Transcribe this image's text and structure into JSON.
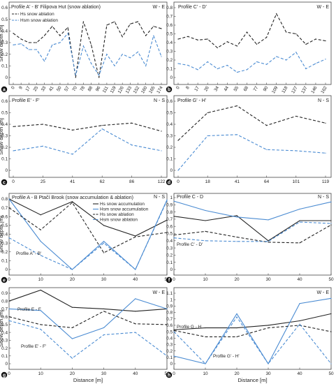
{
  "chart_data": [
    {
      "panel": "a",
      "type": "line",
      "direction": "W - E",
      "title": "Profile A' - B' Filipova Hut (snow ablation)",
      "x_type": "category",
      "categories": [
        "0",
        "9",
        "17",
        "25",
        "33",
        "41",
        "50",
        "57",
        "70",
        "78",
        "88",
        "96",
        "111",
        "119",
        "126",
        "133",
        "152",
        "160",
        "165",
        "174"
      ],
      "ylim": [
        0,
        0.6
      ],
      "yticks": [
        "0",
        "0.1",
        "0.2",
        "0.3",
        "0.4",
        "0.5",
        "0.6"
      ],
      "ylabel": "Snow depth [m]",
      "xlabel": "",
      "series": [
        {
          "name": "Hs snow ablation",
          "color": "#222222",
          "dash": "4,2.5",
          "values": [
            0.38,
            0.33,
            0.3,
            0.3,
            0.36,
            0.44,
            0.36,
            0.43,
            0.0,
            0.48,
            0.28,
            0.0,
            0.45,
            0.48,
            0.35,
            0.46,
            0.48,
            0.36,
            0.44,
            0.42
          ]
        },
        {
          "name": "Hsm snow ablation",
          "color": "#4a8bd2",
          "dash": "4,2.5",
          "values": [
            0.28,
            0.29,
            0.24,
            0.24,
            0.14,
            0.28,
            0.3,
            0.38,
            0.02,
            0.27,
            0.12,
            0.02,
            0.2,
            0.1,
            0.2,
            0.17,
            0.22,
            0.1,
            0.36,
            0.18
          ]
        }
      ],
      "legend": [
        {
          "label": "Hs snow ablation",
          "color": "#222222"
        },
        {
          "label": "Hsm snow ablation",
          "color": "#4a8bd2"
        }
      ]
    },
    {
      "panel": "b",
      "type": "line",
      "direction": "W - E",
      "title": "Profile C' - D'",
      "x_type": "category",
      "categories": [
        "0",
        "8",
        "17",
        "26",
        "34",
        "44",
        "55",
        "68",
        "77",
        "90",
        "109",
        "118",
        "127",
        "137",
        "146",
        "162"
      ],
      "ylim": [
        0,
        0.8
      ],
      "yticks": [
        "0",
        "0.1",
        "0.2",
        "0.3",
        "0.4",
        "0.5",
        "0.6",
        "0.7",
        "0.8"
      ],
      "ylabel": "",
      "xlabel": "",
      "series": [
        {
          "name": "",
          "color": "#222222",
          "dash": "4,2.5",
          "values": [
            0.44,
            0.47,
            0.43,
            0.44,
            0.34,
            0.41,
            0.36,
            0.52,
            0.38,
            0.46,
            0.73,
            0.52,
            0.5,
            0.38,
            0.44,
            0.42
          ]
        },
        {
          "name": "",
          "color": "#4a8bd2",
          "dash": "4,2.5",
          "values": [
            0.16,
            0.14,
            0.09,
            0.18,
            0.1,
            0.14,
            0.06,
            0.09,
            0.18,
            0.15,
            0.24,
            0.2,
            0.29,
            0.1,
            0.16,
            0.21
          ]
        }
      ],
      "legend": []
    },
    {
      "panel": "c",
      "type": "line",
      "direction": "N - S",
      "title": "Profile E' - F'",
      "x_type": "category",
      "categories": [
        "0",
        "25",
        "41",
        "62",
        "86",
        "122"
      ],
      "ylim": [
        0,
        0.6
      ],
      "yticks": [
        "0",
        "0.1",
        "0.2",
        "0.3",
        "0.4",
        "0.5",
        "0.6"
      ],
      "ylabel": "Snow depth [m]",
      "xlabel": "",
      "series": [
        {
          "name": "",
          "color": "#222222",
          "dash": "4,2.5",
          "values": [
            0.38,
            0.4,
            0.35,
            0.39,
            0.41,
            0.34
          ]
        },
        {
          "name": "",
          "color": "#4a8bd2",
          "dash": "4,2.5",
          "values": [
            0.17,
            0.21,
            0.14,
            0.36,
            0.22,
            0.17
          ]
        }
      ],
      "legend": []
    },
    {
      "panel": "d",
      "type": "line",
      "direction": "N - S",
      "title": "Profile G' - H'",
      "x_type": "category",
      "categories": [
        "0",
        "18",
        "41",
        "64",
        "101",
        "119"
      ],
      "ylim": [
        0,
        0.6
      ],
      "yticks": [
        "0",
        "0.1",
        "0.2",
        "0.3",
        "0.4",
        "0.5",
        "0.6"
      ],
      "ylabel": "",
      "xlabel": "",
      "series": [
        {
          "name": "",
          "color": "#222222",
          "dash": "4,2.5",
          "values": [
            0.26,
            0.5,
            0.56,
            0.39,
            0.47,
            0.41
          ]
        },
        {
          "name": "",
          "color": "#4a8bd2",
          "dash": "4,2.5",
          "values": [
            0.0,
            0.3,
            0.31,
            0.18,
            0.17,
            0.15
          ]
        }
      ],
      "legend": []
    },
    {
      "panel": "e",
      "type": "line",
      "direction": "N - S",
      "title": "Profile A - B  Ptačí Brook (snow accumulation & ablation)",
      "x_type": "linear",
      "xlim": [
        0,
        50
      ],
      "xticks": [
        0,
        10,
        20,
        30,
        40,
        50
      ],
      "ylim": [
        0,
        0.8
      ],
      "yticks": [
        "0",
        "0.1",
        "0.2",
        "0.3",
        "0.4",
        "0.5",
        "0.6",
        "0.7",
        "0.8"
      ],
      "ylabel": "Snow depth [m]",
      "xlabel": "",
      "series": [
        {
          "name": "Hs snow accumulation",
          "color": "#222222",
          "dash": "",
          "x": [
            0,
            10,
            20,
            30,
            40,
            50
          ],
          "values": [
            0.8,
            0.62,
            0.77,
            0.5,
            0.38,
            0.56
          ]
        },
        {
          "name": "Hsm snow accumulation",
          "color": "#4a8bd2",
          "dash": "",
          "x": [
            0,
            10,
            20,
            30,
            40,
            50
          ],
          "values": [
            0.8,
            0.32,
            0.0,
            0.32,
            0.0,
            0.79
          ]
        },
        {
          "name": "Hs snow ablation",
          "color": "#222222",
          "dash": "4,2.5",
          "x": [
            0,
            10,
            20,
            30,
            40,
            50
          ],
          "values": [
            0.7,
            0.45,
            0.76,
            0.19,
            0.37,
            0.42
          ]
        },
        {
          "name": "Hsm snow ablation",
          "color": "#4a8bd2",
          "dash": "4,2.5",
          "x": [
            0,
            10,
            20,
            30,
            40,
            50
          ],
          "values": [
            0.36,
            0.16,
            0.0,
            0.3,
            0.0,
            0.78
          ]
        }
      ],
      "legend": [
        {
          "label": "Hs snow accumulation",
          "color": "#222222",
          "dash": ""
        },
        {
          "label": "Hsm snow accumulation",
          "color": "#4a8bd2",
          "dash": ""
        },
        {
          "label": "Hs snow ablation",
          "color": "#222222",
          "dash": "4,2.5"
        },
        {
          "label": "Hsm snow ablation",
          "color": "#4a8bd2",
          "dash": "4,2.5"
        }
      ],
      "annotations": [
        "Profile A' - B'"
      ]
    },
    {
      "panel": "f",
      "type": "line",
      "direction": "N - S",
      "title": "Profile C - D",
      "x_type": "linear",
      "xlim": [
        0,
        50
      ],
      "xticks": [
        0,
        10,
        20,
        30,
        40,
        50
      ],
      "ylim": [
        0,
        1.0
      ],
      "yticks": [
        "0",
        "0.1",
        "0.2",
        "0.3",
        "0.4",
        "0.5",
        "0.6",
        "0.7",
        "0.8",
        "0.9",
        "1"
      ],
      "ylabel": "",
      "xlabel": "",
      "series": [
        {
          "name": "",
          "color": "#222222",
          "dash": "",
          "x": [
            0,
            10,
            20,
            30,
            40,
            50
          ],
          "values": [
            0.74,
            0.68,
            0.75,
            0.4,
            0.68,
            0.68
          ]
        },
        {
          "name": "",
          "color": "#4a8bd2",
          "dash": "",
          "x": [
            0,
            10,
            20,
            30,
            40,
            50
          ],
          "values": [
            0.95,
            0.82,
            0.73,
            0.69,
            0.84,
            0.94
          ]
        },
        {
          "name": "",
          "color": "#222222",
          "dash": "4,2.5",
          "x": [
            0,
            10,
            20,
            30,
            40,
            50
          ],
          "values": [
            0.48,
            0.53,
            0.45,
            0.38,
            0.37,
            0.62
          ]
        },
        {
          "name": "",
          "color": "#4a8bd2",
          "dash": "4,2.5",
          "x": [
            0,
            10,
            20,
            30,
            40,
            50
          ],
          "values": [
            0.44,
            0.4,
            0.39,
            0.39,
            0.66,
            0.64
          ]
        }
      ],
      "legend": [],
      "annotations": [
        "Profile C' - D'"
      ]
    },
    {
      "panel": "g",
      "type": "line",
      "direction": "W - E",
      "title": "",
      "x_type": "linear",
      "xlim": [
        0,
        50
      ],
      "xticks": [
        0,
        10,
        20,
        30,
        40,
        50
      ],
      "ylim": [
        0,
        0.9
      ],
      "yticks": [
        "0",
        "0.1",
        "0.2",
        "0.3",
        "0.4",
        "0.5",
        "0.6",
        "0.7",
        "0.8",
        "0.9"
      ],
      "ylabel": "Snow depth [m]",
      "xlabel": "Distance [m]",
      "series": [
        {
          "name": "",
          "color": "#222222",
          "dash": "",
          "x": [
            0,
            10,
            20,
            30,
            40,
            50
          ],
          "values": [
            0.8,
            0.94,
            0.72,
            0.7,
            0.67,
            0.7
          ]
        },
        {
          "name": "",
          "color": "#4a8bd2",
          "dash": "",
          "x": [
            0,
            10,
            20,
            30,
            40,
            50
          ],
          "values": [
            0.7,
            0.68,
            0.32,
            0.46,
            0.83,
            0.7
          ]
        },
        {
          "name": "",
          "color": "#222222",
          "dash": "4,2.5",
          "x": [
            0,
            10,
            20,
            30,
            40,
            50
          ],
          "values": [
            0.6,
            0.5,
            0.46,
            0.67,
            0.51,
            0.5
          ]
        },
        {
          "name": "",
          "color": "#4a8bd2",
          "dash": "4,2.5",
          "x": [
            0,
            10,
            20,
            30,
            40,
            50
          ],
          "values": [
            0.55,
            0.44,
            0.07,
            0.37,
            0.4,
            0.1
          ]
        }
      ],
      "legend": [],
      "annotations": [
        "Profile E - F",
        "Profile E' - F'"
      ]
    },
    {
      "panel": "h",
      "type": "line",
      "direction": "W - E",
      "title": "",
      "x_type": "linear",
      "xlim": [
        0,
        50
      ],
      "xticks": [
        0,
        10,
        20,
        30,
        40,
        50
      ],
      "ylim": [
        0,
        1.1
      ],
      "yticks": [
        "0",
        "0.1",
        "0.2",
        "0.3",
        "0.4",
        "0.5",
        "0.6",
        "0.7",
        "0.8",
        "0.9",
        "1",
        "1.1"
      ],
      "ylabel": "",
      "xlabel": "Distance [m]",
      "series": [
        {
          "name": "",
          "color": "#222222",
          "dash": "",
          "x": [
            0,
            10,
            20,
            30,
            40,
            50
          ],
          "values": [
            0.53,
            0.56,
            0.56,
            0.6,
            0.67,
            0.78
          ]
        },
        {
          "name": "",
          "color": "#4a8bd2",
          "dash": "",
          "x": [
            0,
            10,
            20,
            30,
            40,
            50
          ],
          "values": [
            0.12,
            0.0,
            0.78,
            0.0,
            0.94,
            1.02
          ]
        },
        {
          "name": "",
          "color": "#222222",
          "dash": "4,2.5",
          "x": [
            0,
            10,
            20,
            30,
            40,
            50
          ],
          "values": [
            0.52,
            0.42,
            0.42,
            0.56,
            0.6,
            0.5
          ]
        },
        {
          "name": "",
          "color": "#4a8bd2",
          "dash": "4,2.5",
          "x": [
            0,
            10,
            20,
            30,
            40,
            50
          ],
          "values": [
            0.5,
            0.0,
            0.73,
            0.0,
            0.62,
            0.0
          ]
        }
      ],
      "legend": [],
      "annotations": [
        "Profile G - H",
        "Profile G' - H'"
      ]
    }
  ]
}
